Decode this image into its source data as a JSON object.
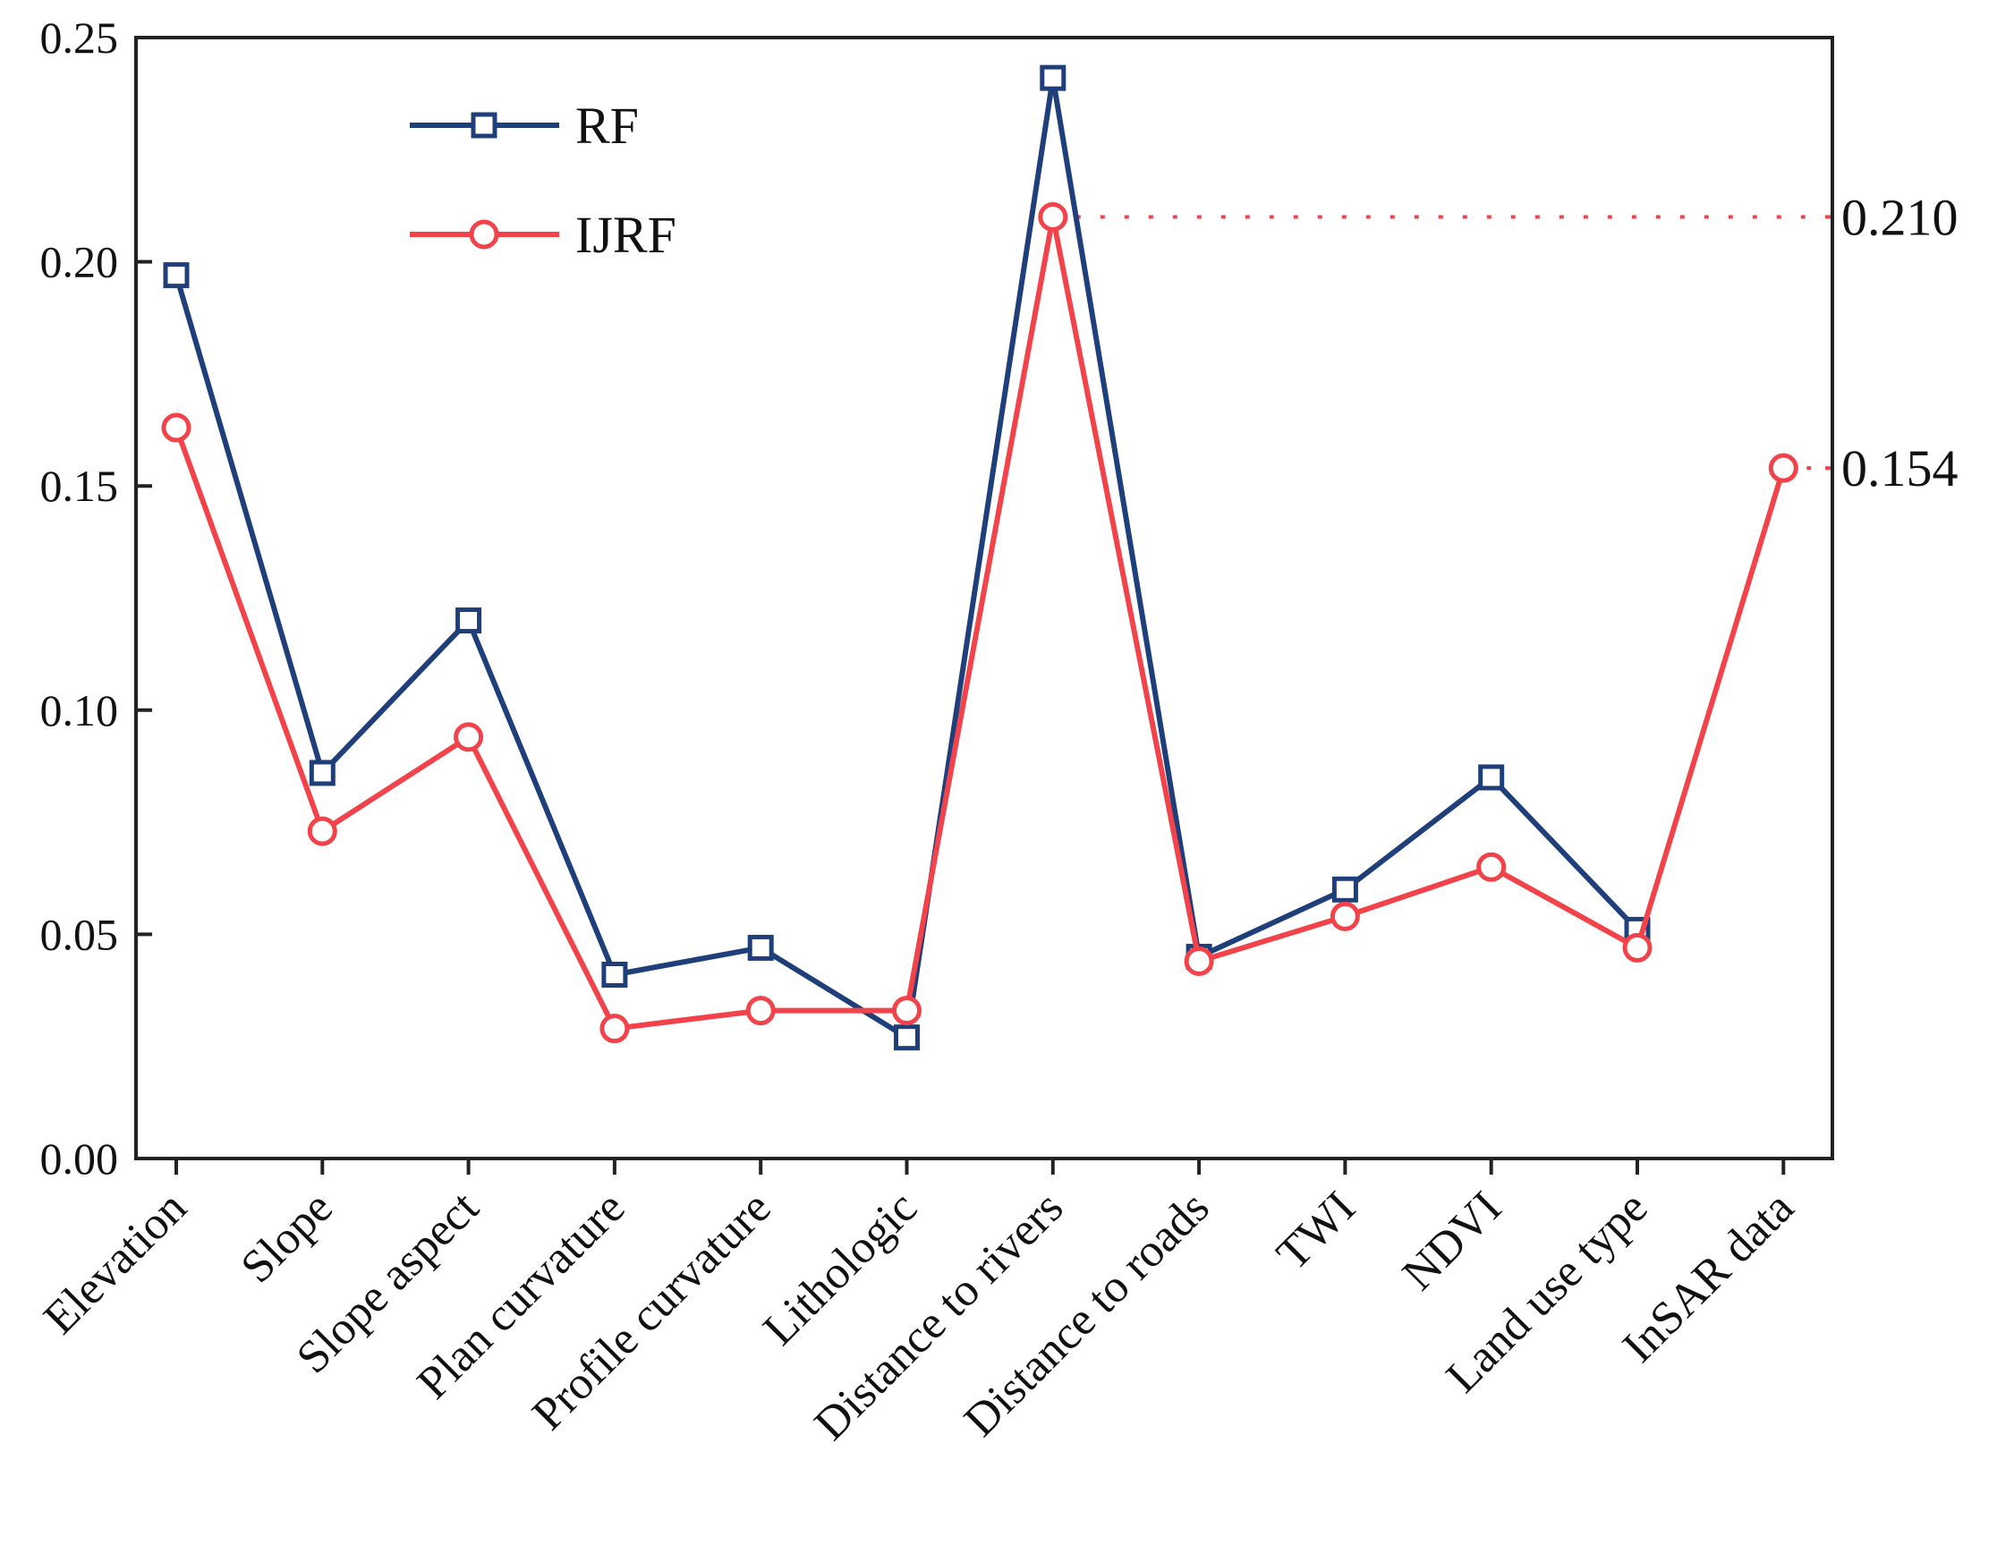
{
  "chart_data": {
    "type": "line",
    "title": "",
    "xlabel": "",
    "ylabel": "",
    "ylim": [
      0,
      0.25
    ],
    "yticks": [
      "0.00",
      "0.05",
      "0.10",
      "0.15",
      "0.20",
      "0.25"
    ],
    "categories": [
      "Elevation",
      "Slope",
      "Slope aspect",
      "Plan curvature",
      "Profile curvature",
      "Lithologic",
      "Distance to rivers",
      "Distance to roads",
      "TWI",
      "NDVI",
      "Land use type",
      "InSAR data"
    ],
    "series": [
      {
        "name": "RF",
        "color": "#1f3f7a",
        "marker": "square",
        "values": [
          0.197,
          0.086,
          0.12,
          0.041,
          0.047,
          0.027,
          0.241,
          0.045,
          0.06,
          0.085,
          0.051,
          null
        ]
      },
      {
        "name": "IJRF",
        "color": "#f2434b",
        "marker": "circle",
        "values": [
          0.163,
          0.073,
          0.094,
          0.029,
          0.033,
          0.033,
          0.21,
          0.044,
          0.054,
          0.065,
          0.047,
          0.154
        ]
      }
    ],
    "annotations": [
      {
        "text": "0.210",
        "value": 0.21,
        "color": "#f2434b"
      },
      {
        "text": "0.154",
        "value": 0.154,
        "color": "#f2434b"
      }
    ],
    "legend": "top-left",
    "grid": false
  }
}
